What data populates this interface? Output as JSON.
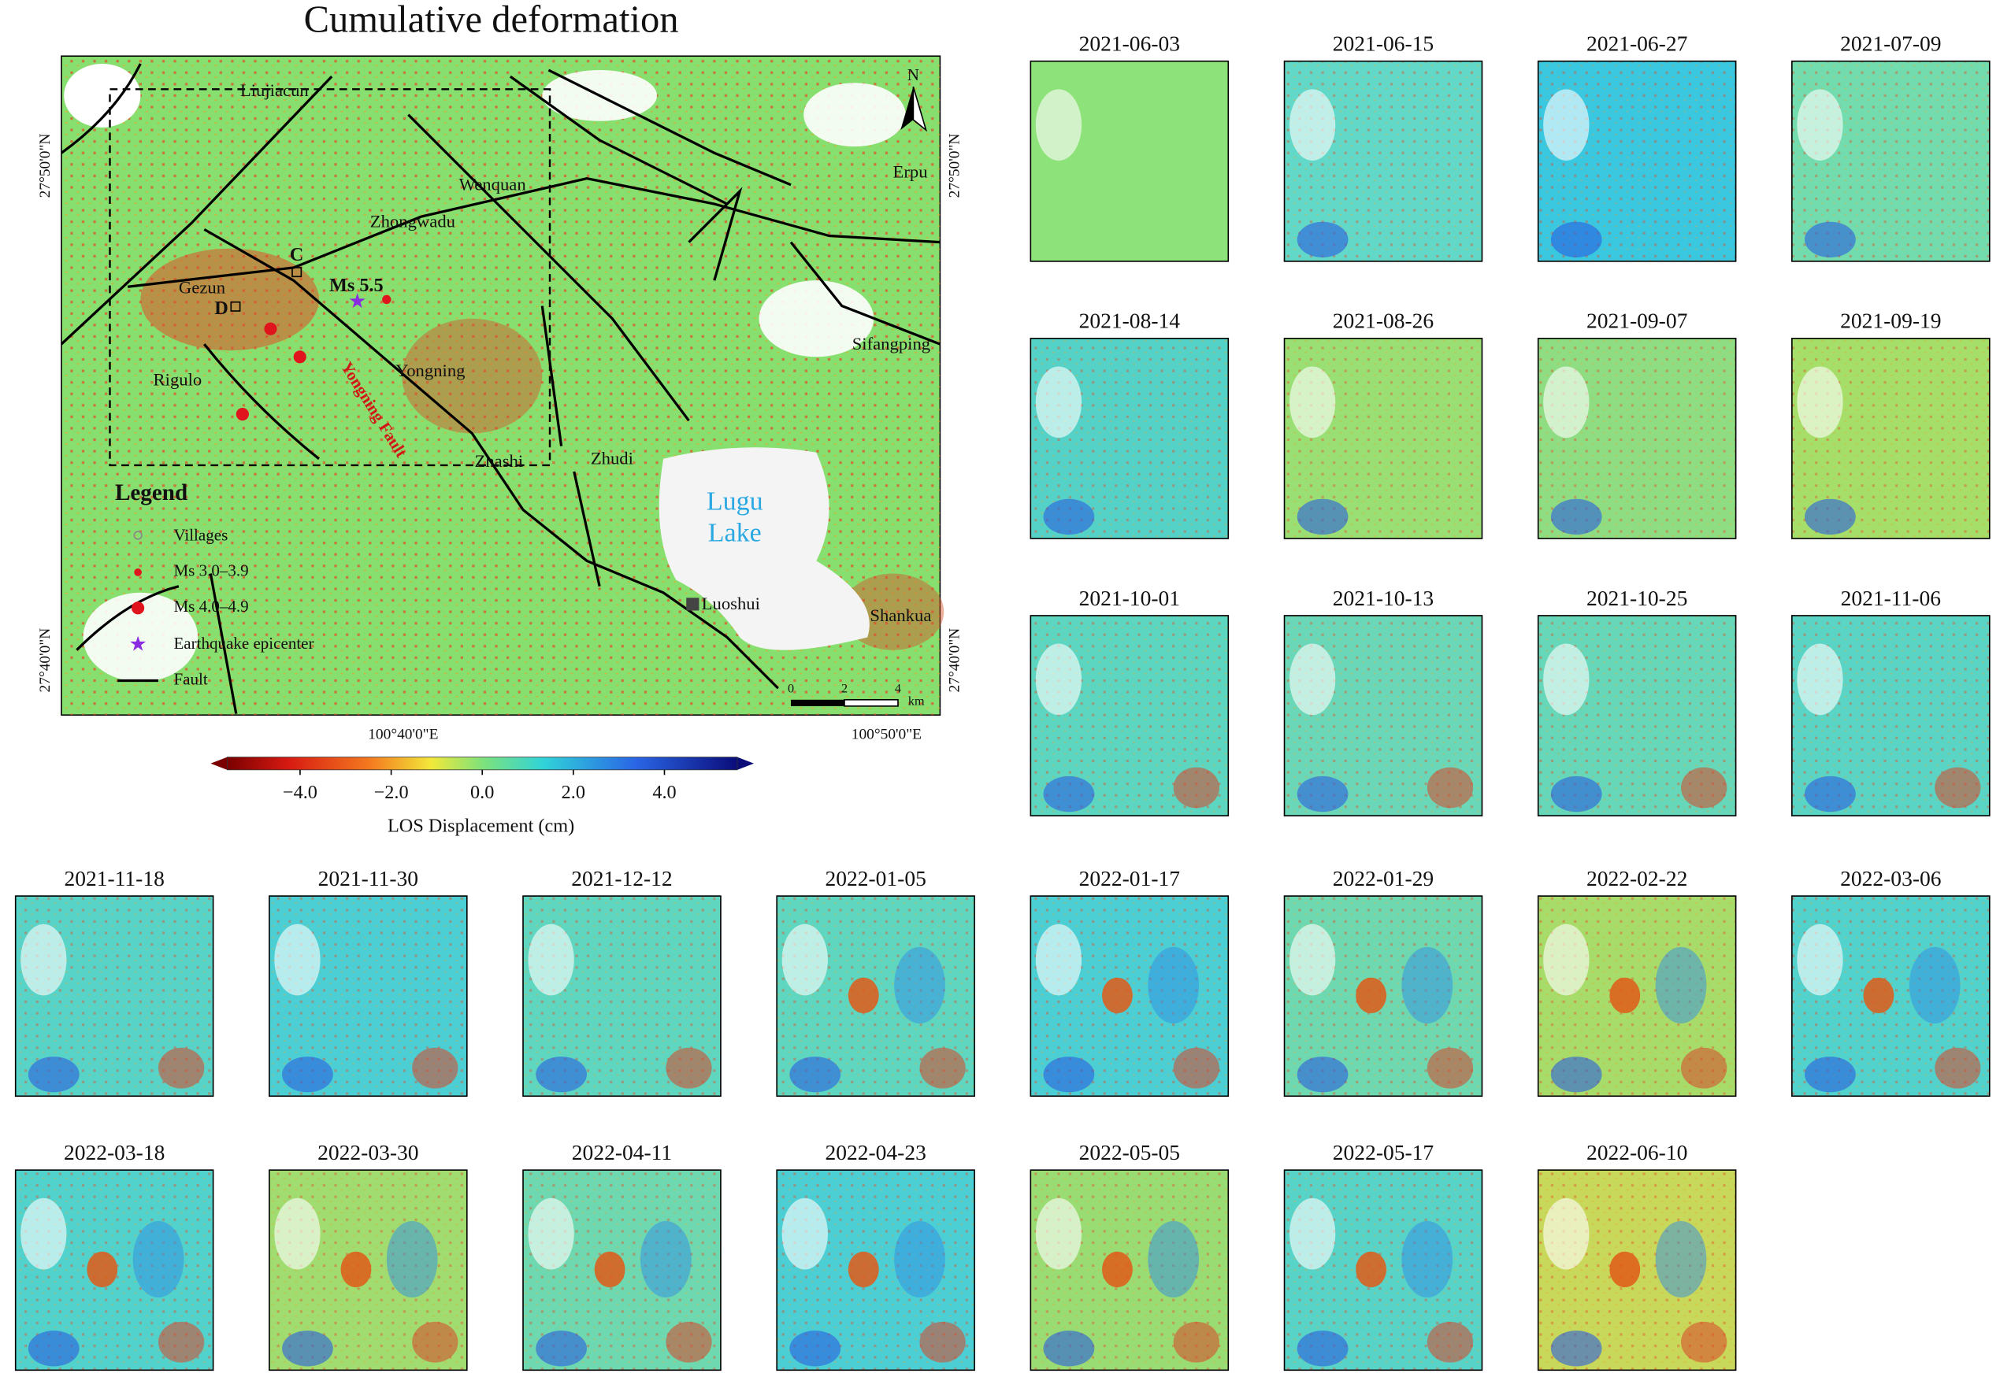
{
  "title": "Cumulative deformation",
  "map": {
    "places": [
      "Liujiacun",
      "Wenquan",
      "Erpu",
      "Zhongwadu",
      "Gezun",
      "Rigulo",
      "Yongning",
      "Sifangping",
      "Zhashi",
      "Zhudi",
      "Luoshui",
      "Shankua"
    ],
    "lake": [
      "Lugu",
      "Lake"
    ],
    "sites": [
      "C",
      "D"
    ],
    "epicenter_label": "Ms 5.5",
    "fault_label": "Yongning Fault",
    "north": "N",
    "lat_labels": [
      "27°50'0\"N",
      "27°40'0\"N"
    ],
    "lon_labels": [
      "100°40'0\"E",
      "100°50'0\"E"
    ],
    "scale_ticks": [
      0,
      2,
      4
    ],
    "scale_unit": "km"
  },
  "legend": {
    "title": "Legend",
    "items": [
      "Villages",
      "Ms 3.0–3.9",
      "Ms 4.0–4.9",
      "Earthquake epicenter",
      "Fault"
    ]
  },
  "colorbar": {
    "label": "LOS Displacement (cm)",
    "lim": [
      -5.6,
      5.6
    ],
    "ticks": [
      {
        "value": -4,
        "label": "−4.0"
      },
      {
        "value": -2,
        "label": "−2.0"
      },
      {
        "value": 0,
        "label": "0.0"
      },
      {
        "value": 2,
        "label": "2.0"
      },
      {
        "value": 4,
        "label": "4.0"
      }
    ]
  },
  "panels": [
    "2021-06-03",
    "2021-06-15",
    "2021-06-27",
    "2021-07-09",
    "2021-08-14",
    "2021-08-26",
    "2021-09-07",
    "2021-09-19",
    "2021-10-01",
    "2021-10-13",
    "2021-10-25",
    "2021-11-06",
    "2021-11-18",
    "2021-11-30",
    "2021-12-12",
    "2022-01-05",
    "2022-01-17",
    "2022-01-29",
    "2022-02-22",
    "2022-03-06",
    "2022-03-18",
    "2022-03-30",
    "2022-04-11",
    "2022-04-23",
    "2022-05-05",
    "2022-05-17",
    "2022-06-10"
  ]
}
